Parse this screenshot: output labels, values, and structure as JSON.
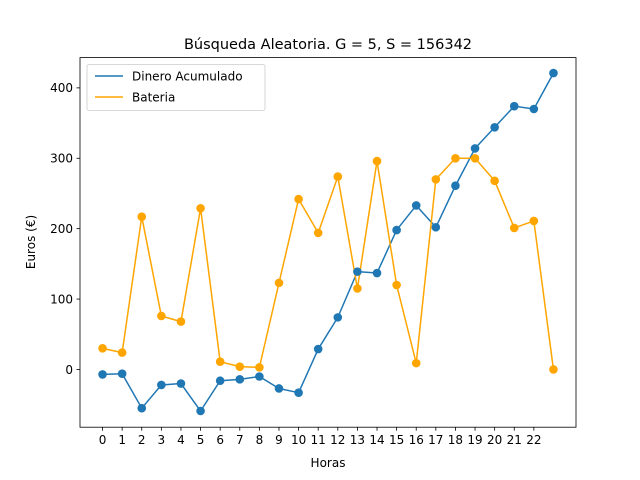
{
  "chart_data": {
    "type": "line",
    "title": "Búsqueda Aleatoria. G = 5, S = 156342",
    "xlabel": "Horas",
    "ylabel": "Euros (€)",
    "xlim": [
      -1.15,
      24.15
    ],
    "ylim": [
      -82,
      443
    ],
    "x_ticks": [
      0,
      1,
      2,
      3,
      4,
      5,
      6,
      7,
      8,
      9,
      10,
      11,
      12,
      13,
      14,
      15,
      16,
      17,
      18,
      19,
      20,
      21,
      22
    ],
    "y_ticks": [
      0,
      100,
      200,
      300,
      400
    ],
    "x": [
      0,
      1,
      2,
      3,
      4,
      5,
      6,
      7,
      8,
      9,
      10,
      11,
      12,
      13,
      14,
      15,
      16,
      17,
      18,
      19,
      20,
      21,
      22,
      23
    ],
    "legend_position": "upper-left",
    "grid": false,
    "series": [
      {
        "name": "Dinero Acumulado",
        "color": "#1f77b4",
        "values": [
          -7,
          -6,
          -55,
          -22,
          -20,
          -59,
          -16,
          -14,
          -10,
          -27,
          -33,
          29,
          74,
          139,
          137,
          198,
          233,
          202,
          261,
          314,
          344,
          374,
          370,
          421
        ]
      },
      {
        "name": "Bateria",
        "color": "#ffa500",
        "values": [
          30,
          24,
          217,
          76,
          68,
          229,
          11,
          4,
          3,
          123,
          242,
          194,
          274,
          115,
          296,
          120,
          9,
          270,
          300,
          300,
          268,
          201,
          211,
          0
        ]
      }
    ]
  }
}
